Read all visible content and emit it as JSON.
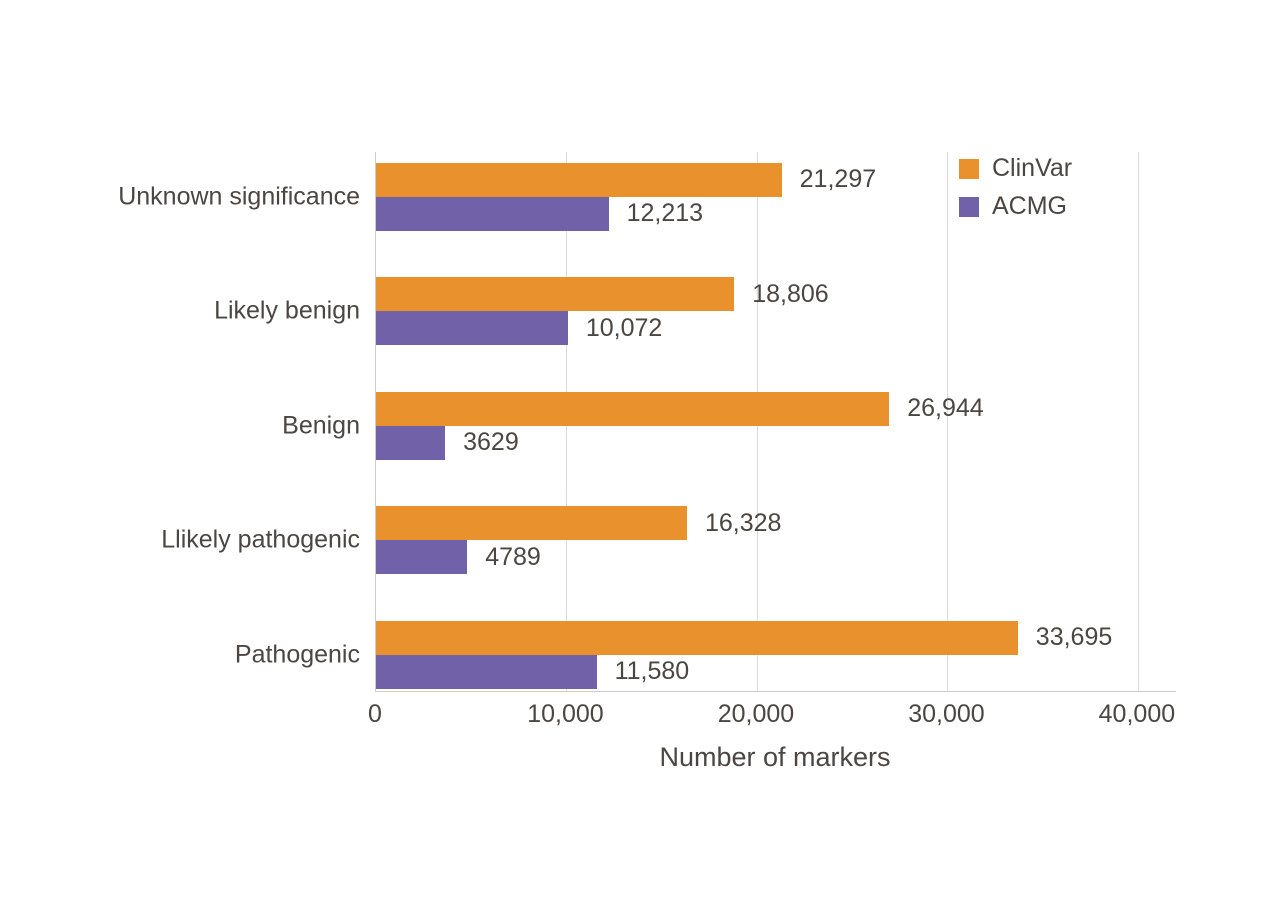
{
  "chart_data": {
    "type": "bar",
    "orientation": "horizontal",
    "title": "",
    "xlabel": "Number of markers",
    "ylabel": "",
    "xlim": [
      0,
      42000
    ],
    "grid": "vertical-gridlines",
    "legend_position": "top-right-inside",
    "categories": [
      "Unknown significance",
      "Likely benign",
      "Benign",
      "Llikely pathogenic",
      "Pathogenic"
    ],
    "series": [
      {
        "name": "ClinVar",
        "color": "#E8912D",
        "values": [
          21297,
          18806,
          26944,
          16328,
          33695
        ],
        "value_labels": [
          "21,297",
          "18,806",
          "26,944",
          "16,328",
          "33,695"
        ]
      },
      {
        "name": "ACMG",
        "color": "#7161A8",
        "values": [
          12213,
          10072,
          3629,
          4789,
          11580
        ],
        "value_labels": [
          "12,213",
          "10,072",
          "3629",
          "4789",
          "11,580"
        ]
      }
    ],
    "xticks": [
      {
        "value": 0,
        "label": "0"
      },
      {
        "value": 10000,
        "label": "10,000"
      },
      {
        "value": 20000,
        "label": "20,000"
      },
      {
        "value": 30000,
        "label": "30,000"
      },
      {
        "value": 40000,
        "label": "40,000"
      }
    ]
  },
  "colors": {
    "text": "#4B4642",
    "grid": "#DBDBDA",
    "axis": "#CDCAC8",
    "background": "#FFFFFF"
  }
}
